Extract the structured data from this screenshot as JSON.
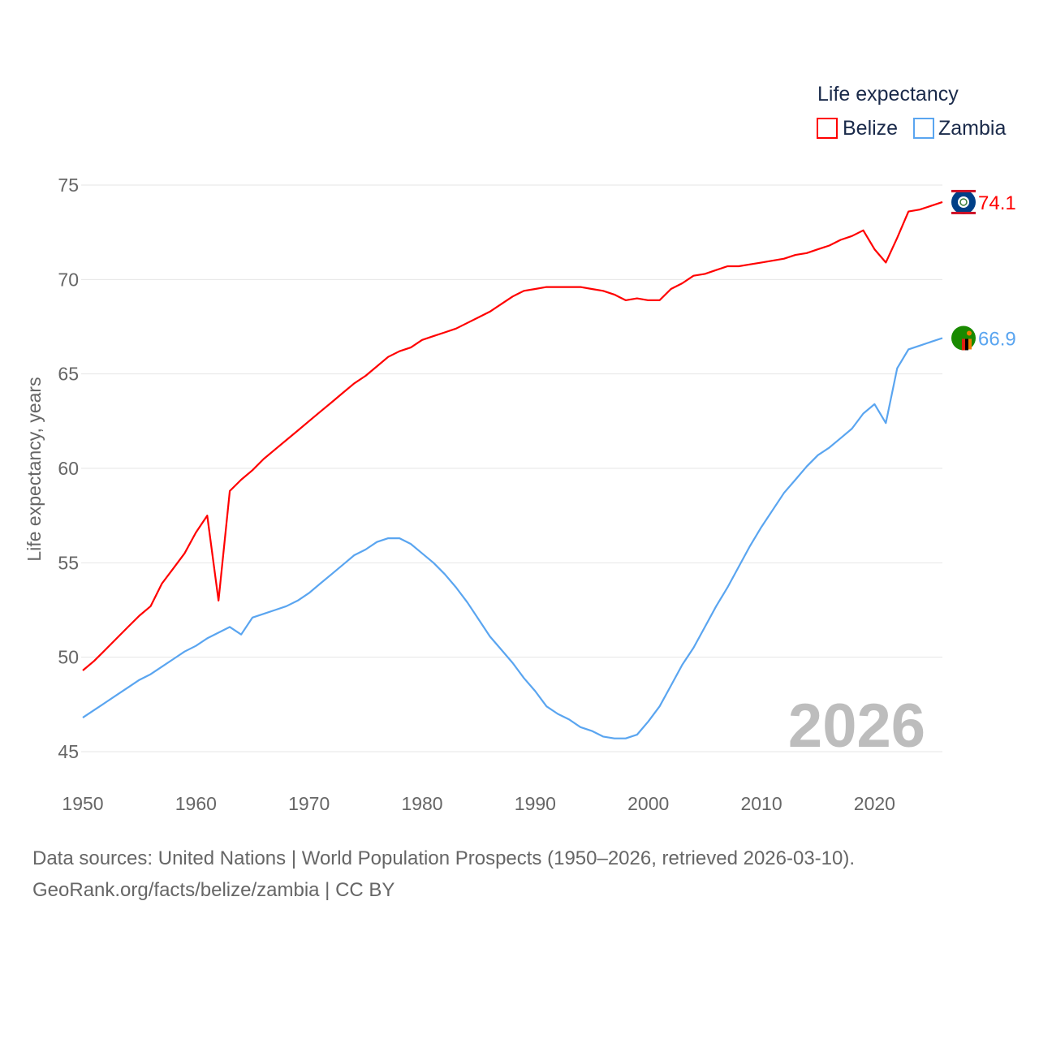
{
  "chart_data": {
    "type": "line",
    "title": "",
    "legend_title": "Life expectancy",
    "legend_placement": "top-right",
    "ylabel": "Life expectancy, years",
    "xlabel": "",
    "xlim": [
      1950,
      2026
    ],
    "ylim": [
      45,
      75
    ],
    "x_ticks": [
      1950,
      1960,
      1970,
      1980,
      1990,
      2000,
      2010,
      2020
    ],
    "y_ticks": [
      45,
      50,
      55,
      60,
      65,
      70,
      75
    ],
    "grid": true,
    "watermark_year": "2026",
    "x": [
      1950,
      1951,
      1952,
      1953,
      1954,
      1955,
      1956,
      1957,
      1958,
      1959,
      1960,
      1961,
      1962,
      1963,
      1964,
      1965,
      1966,
      1967,
      1968,
      1969,
      1970,
      1971,
      1972,
      1973,
      1974,
      1975,
      1976,
      1977,
      1978,
      1979,
      1980,
      1981,
      1982,
      1983,
      1984,
      1985,
      1986,
      1987,
      1988,
      1989,
      1990,
      1991,
      1992,
      1993,
      1994,
      1995,
      1996,
      1997,
      1998,
      1999,
      2000,
      2001,
      2002,
      2003,
      2004,
      2005,
      2006,
      2007,
      2008,
      2009,
      2010,
      2011,
      2012,
      2013,
      2014,
      2015,
      2016,
      2017,
      2018,
      2019,
      2020,
      2021,
      2022,
      2023,
      2024,
      2025,
      2026
    ],
    "series": [
      {
        "name": "Belize",
        "color": "#ff0000",
        "end_label": "74.1",
        "values": [
          49.3,
          49.8,
          50.4,
          51.0,
          51.6,
          52.2,
          52.7,
          53.9,
          54.7,
          55.5,
          56.6,
          57.5,
          53.0,
          58.8,
          59.4,
          59.9,
          60.5,
          61.0,
          61.5,
          62.0,
          62.5,
          63.0,
          63.5,
          64.0,
          64.5,
          64.9,
          65.4,
          65.9,
          66.2,
          66.4,
          66.8,
          67.0,
          67.2,
          67.4,
          67.7,
          68.0,
          68.3,
          68.7,
          69.1,
          69.4,
          69.5,
          69.6,
          69.6,
          69.6,
          69.6,
          69.5,
          69.4,
          69.2,
          68.9,
          69.0,
          68.9,
          68.9,
          69.5,
          69.8,
          70.2,
          70.3,
          70.5,
          70.7,
          70.7,
          70.8,
          70.9,
          71.0,
          71.1,
          71.3,
          71.4,
          71.6,
          71.8,
          72.1,
          72.3,
          72.6,
          71.6,
          70.9,
          72.2,
          73.6,
          73.7,
          73.9,
          74.1
        ]
      },
      {
        "name": "Zambia",
        "color": "#5aa5f0",
        "end_label": "66.9",
        "values": [
          46.8,
          47.2,
          47.6,
          48.0,
          48.4,
          48.8,
          49.1,
          49.5,
          49.9,
          50.3,
          50.6,
          51.0,
          51.3,
          51.6,
          51.2,
          52.1,
          52.3,
          52.5,
          52.7,
          53.0,
          53.4,
          53.9,
          54.4,
          54.9,
          55.4,
          55.7,
          56.1,
          56.3,
          56.3,
          56.0,
          55.5,
          55.0,
          54.4,
          53.7,
          52.9,
          52.0,
          51.1,
          50.4,
          49.7,
          48.9,
          48.2,
          47.4,
          47.0,
          46.7,
          46.3,
          46.1,
          45.8,
          45.7,
          45.7,
          45.9,
          46.6,
          47.4,
          48.5,
          49.6,
          50.5,
          51.6,
          52.7,
          53.7,
          54.8,
          55.9,
          56.9,
          57.8,
          58.7,
          59.4,
          60.1,
          60.7,
          61.1,
          61.6,
          62.1,
          62.9,
          63.4,
          62.4,
          65.3,
          66.3,
          66.5,
          66.7,
          66.9
        ]
      }
    ]
  },
  "footer": {
    "sources": "Data sources: United Nations | World Population Prospects (1950–2026, retrieved 2026-03-10).",
    "credit": "GeoRank.org/facts/belize/zambia | CC BY"
  }
}
